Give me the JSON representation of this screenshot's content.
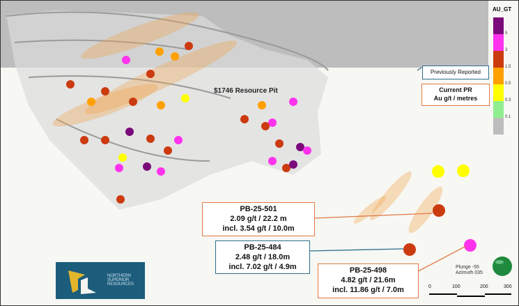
{
  "legend": {
    "title": "AU_GT",
    "classes": [
      {
        "label": "5",
        "color": "#7b0a7b"
      },
      {
        "label": "3",
        "color": "#ff33ee"
      },
      {
        "label": "1.5",
        "color": "#cc3a10"
      },
      {
        "label": "0.5",
        "color": "#ffa000"
      },
      {
        "label": "0.3",
        "color": "#ffff00"
      },
      {
        "label": "0.1",
        "color": "#90ee90"
      },
      {
        "label": "",
        "color": "#bdbdbd"
      }
    ]
  },
  "key": {
    "previously_reported": "Previously Reported",
    "current_pr_line1": "Current PR",
    "current_pr_line2": "Au g/t / metres"
  },
  "pit_label": "$1746 Resource Pit",
  "intercepts": [
    {
      "hole": "PB-25-501",
      "line1": "2.09 g/t / 22.2 m",
      "line2": "incl. 3.54 g/t / 10.0m",
      "status": "current"
    },
    {
      "hole": "PB-25-484",
      "line1": "2.48 g/t / 18.0m",
      "line2": "incl. 7.02 g/t / 4.9m",
      "status": "previous"
    },
    {
      "hole": "PB-25-498",
      "line1": "4.82 g/t / 21.6m",
      "line2": "incl. 11.86 g/t / 7.0m",
      "status": "current"
    }
  ],
  "view": {
    "plunge": "Plunge -55",
    "azimuth": "Azimuth 035"
  },
  "scale_bar": [
    "0",
    "100",
    "200",
    "300"
  ],
  "logo": {
    "text": "NORTHERN SUPERIOR RESOURCES"
  },
  "colors": {
    "current": "#e07a45",
    "previous": "#2e6f8e",
    "logo_bg": "#1d5d7c"
  }
}
